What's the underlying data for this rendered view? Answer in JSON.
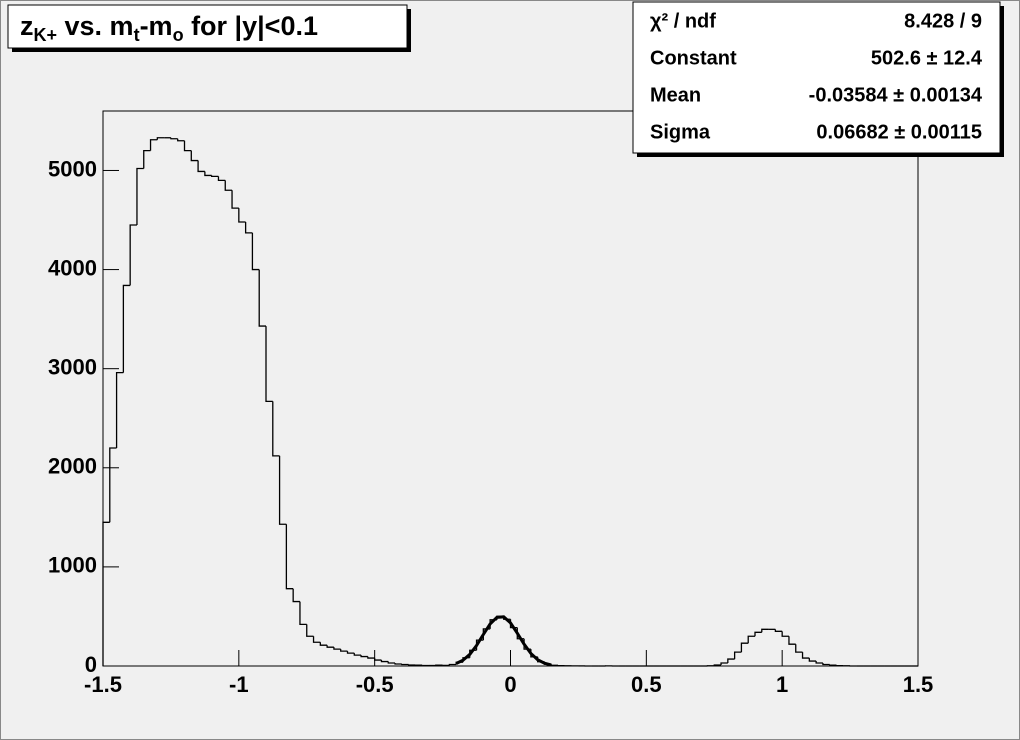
{
  "chart_data": {
    "type": "histogram",
    "title": [
      "z",
      "K+",
      " vs. m",
      "t",
      "-m",
      "o",
      " for |y|<0.1"
    ],
    "bins": [
      -1.5,
      -1.475,
      -1.45,
      -1.425,
      -1.4,
      -1.375,
      -1.35,
      -1.325,
      -1.3,
      -1.275,
      -1.25,
      -1.225,
      -1.2,
      -1.175,
      -1.15,
      -1.125,
      -1.1,
      -1.075,
      -1.05,
      -1.025,
      -1.0,
      -0.975,
      -0.95,
      -0.925,
      -0.9,
      -0.875,
      -0.85,
      -0.825,
      -0.8,
      -0.775,
      -0.75,
      -0.725,
      -0.7,
      -0.675,
      -0.65,
      -0.625,
      -0.6,
      -0.575,
      -0.55,
      -0.525,
      -0.5,
      -0.475,
      -0.45,
      -0.425,
      -0.4,
      -0.375,
      -0.35,
      -0.325,
      -0.3,
      -0.275,
      -0.25,
      -0.225,
      -0.2,
      -0.175,
      -0.15,
      -0.125,
      -0.1,
      -0.075,
      -0.05,
      -0.025,
      0.0,
      0.025,
      0.05,
      0.075,
      0.1,
      0.125,
      0.15,
      0.175,
      0.2,
      0.225,
      0.25,
      0.275,
      0.3,
      0.325,
      0.35,
      0.375,
      0.4,
      0.425,
      0.45,
      0.475,
      0.5,
      0.525,
      0.55,
      0.575,
      0.6,
      0.625,
      0.65,
      0.675,
      0.7,
      0.725,
      0.75,
      0.775,
      0.8,
      0.825,
      0.85,
      0.875,
      0.9,
      0.925,
      0.95,
      0.975,
      1.0,
      1.025,
      1.05,
      1.075,
      1.1,
      1.125,
      1.15,
      1.175,
      1.2,
      1.225,
      1.25,
      1.275,
      1.3,
      1.325,
      1.35,
      1.375,
      1.4,
      1.425,
      1.45,
      1.475,
      1.5
    ],
    "values": [
      1450,
      2200,
      2960,
      3840,
      4450,
      5020,
      5200,
      5310,
      5330,
      5330,
      5320,
      5300,
      5200,
      5100,
      4990,
      4950,
      4940,
      4900,
      4800,
      4620,
      4480,
      4370,
      4000,
      3430,
      2670,
      2120,
      1430,
      780,
      650,
      420,
      300,
      240,
      210,
      190,
      170,
      150,
      130,
      110,
      95,
      80,
      60,
      45,
      30,
      20,
      15,
      10,
      8,
      5,
      5,
      8,
      6,
      15,
      38,
      83,
      159,
      261,
      374,
      466,
      502,
      472,
      387,
      275,
      170,
      92,
      43,
      18,
      7,
      3,
      2,
      1,
      1,
      0,
      0,
      0,
      1,
      0,
      0,
      0,
      0,
      0,
      0,
      0,
      0,
      0,
      0,
      0,
      0,
      0,
      0,
      2,
      10,
      30,
      70,
      140,
      230,
      300,
      340,
      370,
      370,
      350,
      300,
      220,
      140,
      80,
      50,
      30,
      15,
      8,
      4,
      2,
      0,
      0,
      0,
      0,
      0,
      0,
      0,
      0,
      0,
      0
    ],
    "fit": {
      "x": [
        -0.2,
        -0.175,
        -0.15,
        -0.125,
        -0.1,
        -0.075,
        -0.05,
        -0.025,
        0.0,
        0.025,
        0.05,
        0.075,
        0.1,
        0.125,
        0.15
      ],
      "values": [
        25,
        58,
        117,
        207,
        318,
        424,
        491,
        496,
        435,
        331,
        220,
        127,
        63,
        28,
        11
      ]
    },
    "stats": [
      {
        "label": "χ² / ndf",
        "value": "8.428 / 9"
      },
      {
        "label": "Constant",
        "value": "502.6 ± 12.4"
      },
      {
        "label": "Mean",
        "value": "-0.03584 ± 0.00134"
      },
      {
        "label": "Sigma",
        "value": "0.06682 ± 0.00115"
      }
    ],
    "xlim": [
      -1.5,
      1.5
    ],
    "xticks": [
      -1.5,
      -1,
      -0.5,
      0,
      0.5,
      1,
      1.5
    ],
    "ylim": [
      0,
      5600
    ],
    "yticks": [
      0,
      1000,
      2000,
      3000,
      4000,
      5000
    ],
    "color": "#000000"
  }
}
